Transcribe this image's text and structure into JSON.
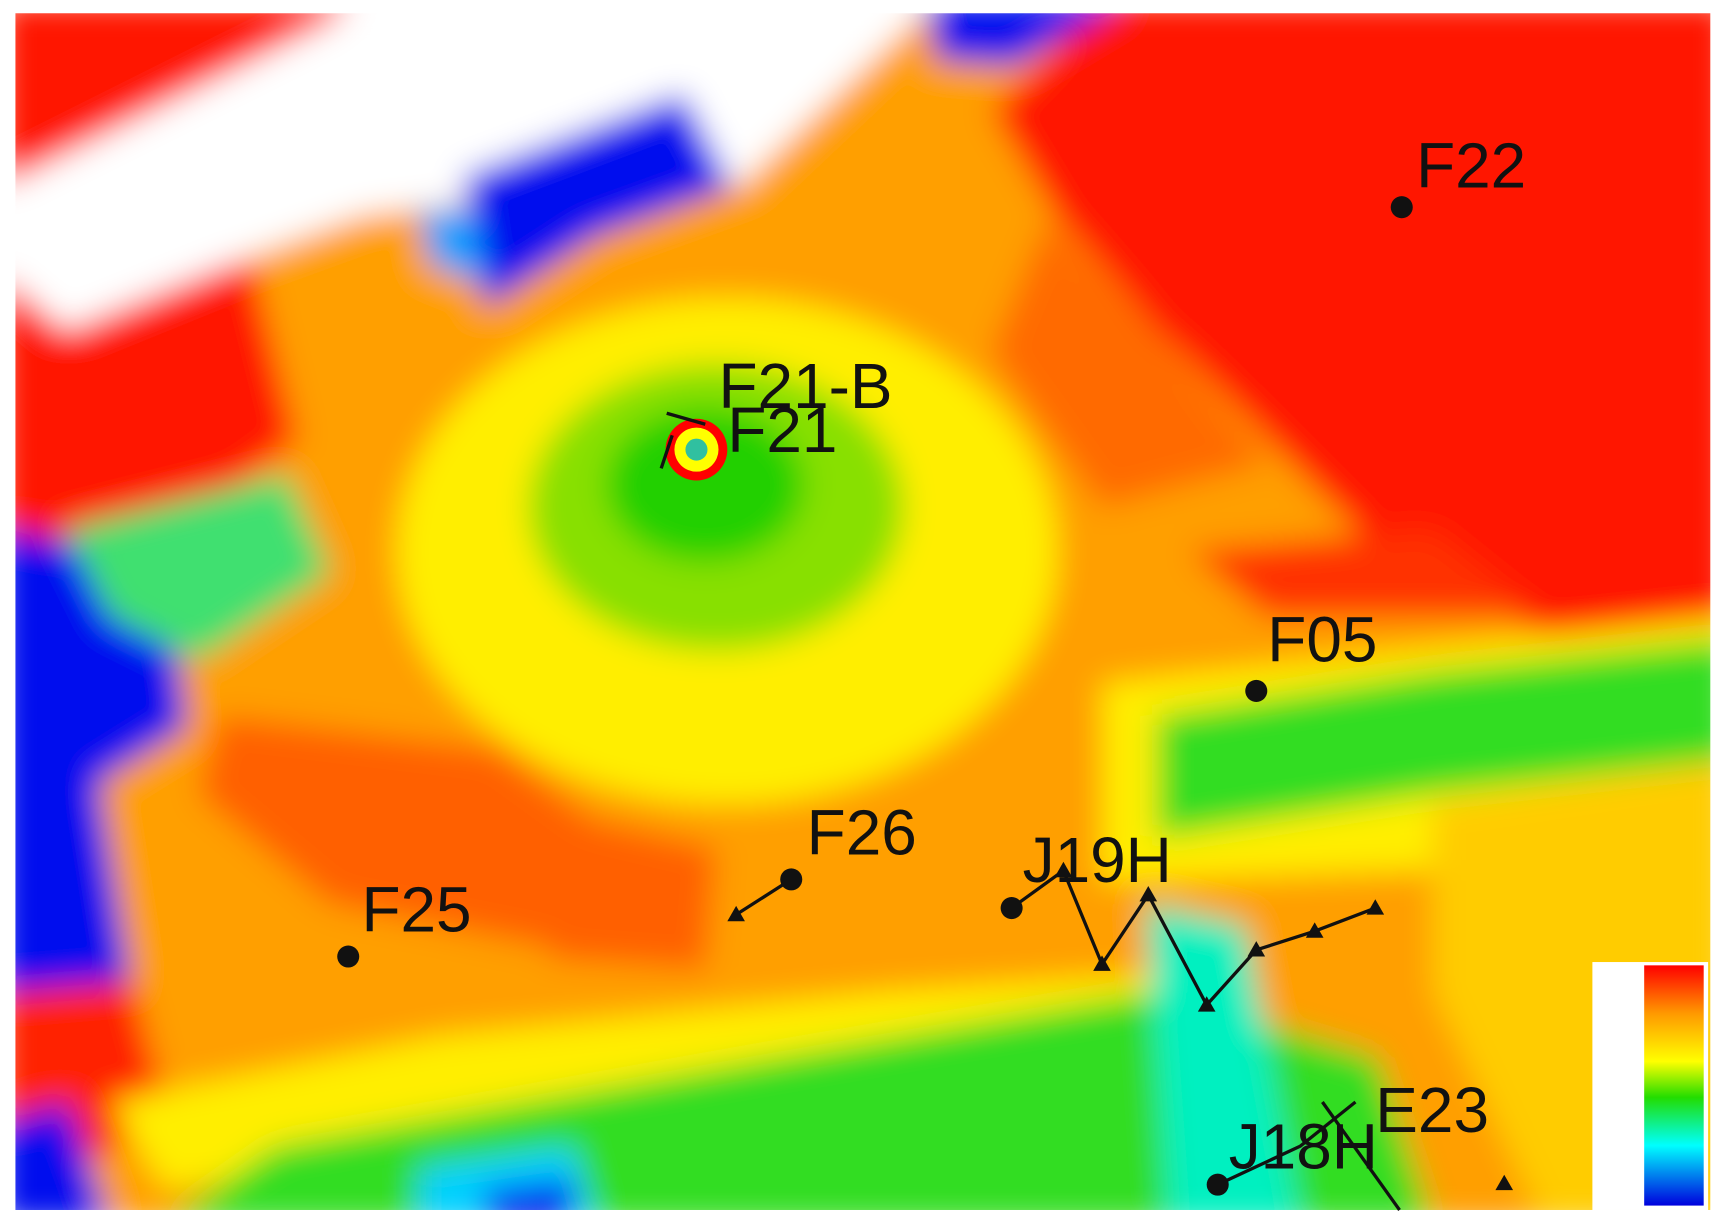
{
  "wells": [
    {
      "label": "F22"
    },
    {
      "label": "F21-B"
    },
    {
      "label": "F21"
    },
    {
      "label": "F05"
    },
    {
      "label": "F26"
    },
    {
      "label": "F25"
    },
    {
      "label": "J19H"
    },
    {
      "label": "J18H"
    },
    {
      "label": "E23"
    }
  ]
}
